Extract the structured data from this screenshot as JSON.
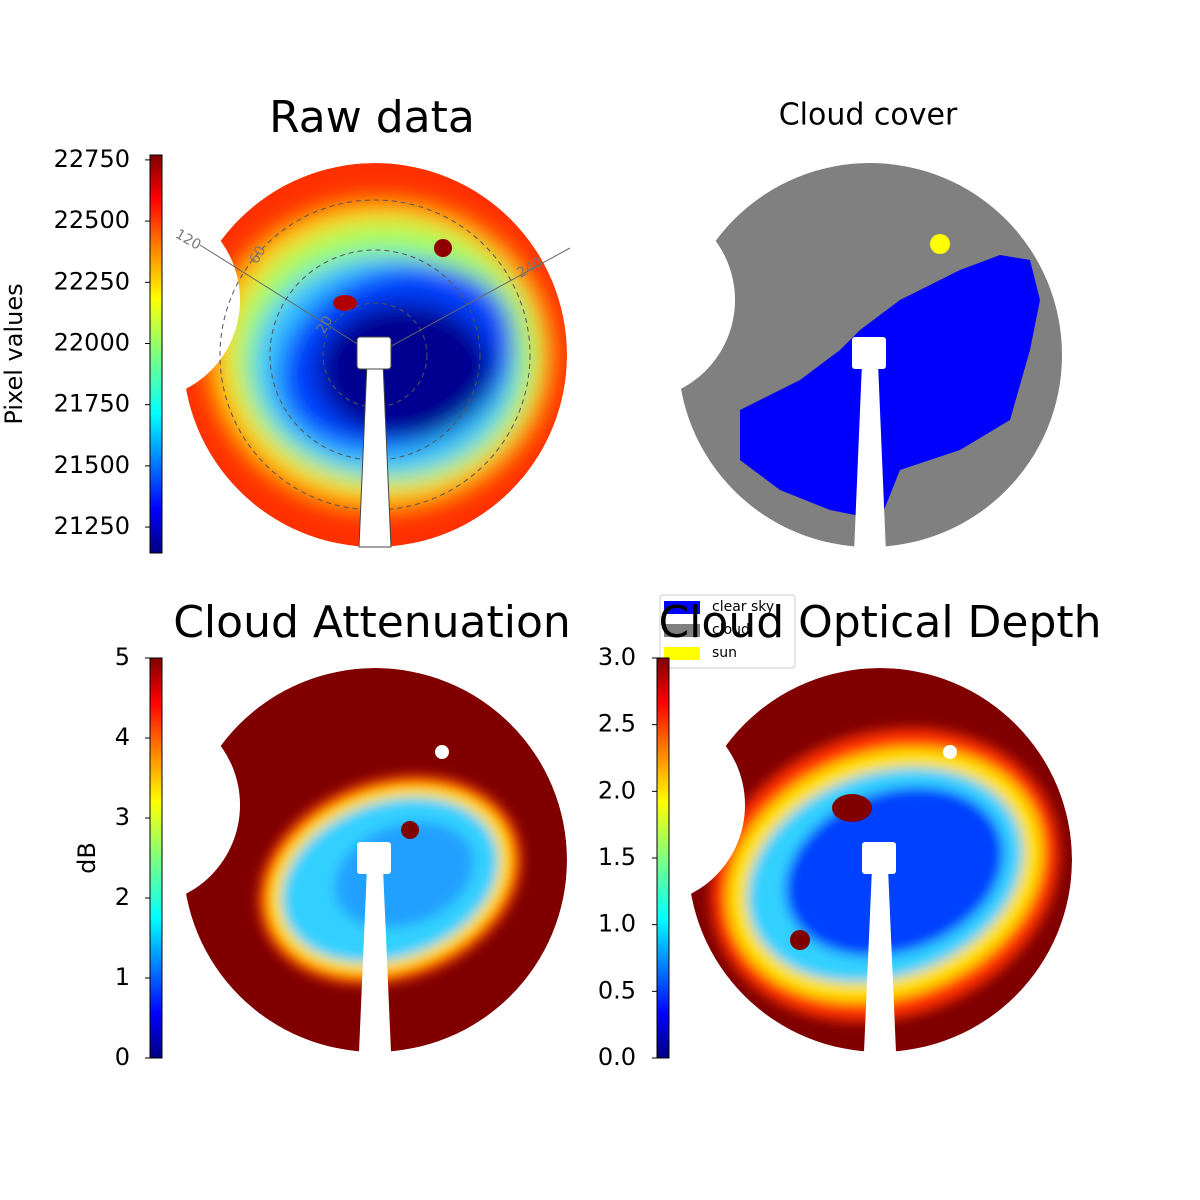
{
  "chart_data": [
    {
      "type": "image",
      "title": "Raw data",
      "colorbar": {
        "label": "Pixel values",
        "lim": [
          21144,
          22770
        ],
        "ticks": [
          21250,
          21500,
          21750,
          22000,
          22250,
          22500,
          22750
        ]
      },
      "annotations": [
        "120",
        "60",
        "240",
        "20"
      ]
    },
    {
      "type": "image",
      "title": "Cloud cover",
      "series": [
        {
          "name": "clear sky",
          "color": "#0000ff"
        },
        {
          "name": "cloud",
          "color": "#808080"
        },
        {
          "name": "sun",
          "color": "#ffff00"
        }
      ]
    },
    {
      "type": "image",
      "title": "Cloud Attenuation",
      "colorbar": {
        "label": "dB",
        "lim": [
          0,
          5
        ],
        "ticks": [
          0,
          1,
          2,
          3,
          4,
          5
        ]
      }
    },
    {
      "type": "image",
      "title": "Cloud Optical Depth",
      "colorbar": {
        "lim": [
          0,
          3
        ],
        "ticks": [
          {
            "value": 0,
            "label": "0.0"
          },
          0.5,
          {
            "value": 1,
            "label": "1.0"
          },
          1.5,
          {
            "value": 2,
            "label": "2.0"
          },
          2.5,
          {
            "value": 3,
            "label": "3.0"
          }
        ]
      }
    }
  ]
}
